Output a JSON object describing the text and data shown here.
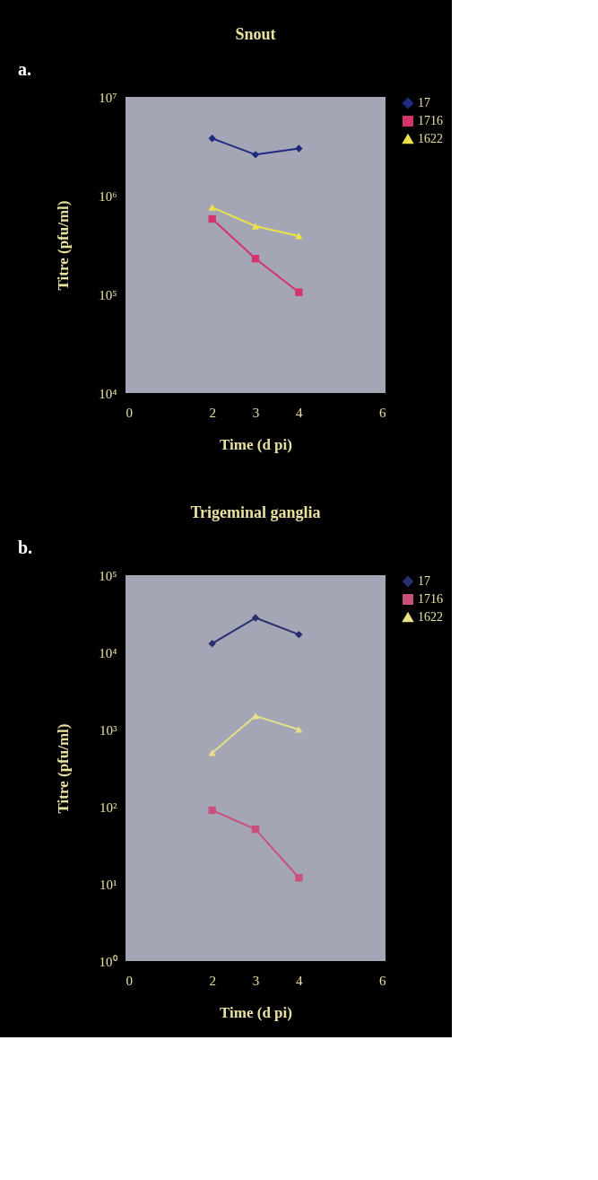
{
  "chart_data": [
    {
      "type": "line",
      "title": "Snout",
      "xlabel": "Time (d pi)",
      "ylabel": "Titre (pfu/ml)",
      "annotations": [
        "a."
      ],
      "log": "y",
      "legend": "right",
      "grid": false,
      "xlim": [
        0,
        6
      ],
      "xticks": [
        0,
        2,
        3,
        4,
        6
      ],
      "ylim": [
        10000,
        10000000
      ],
      "yticks": [
        {
          "value": 10000,
          "label": "10⁴"
        },
        {
          "value": 100000,
          "label": "10⁵"
        },
        {
          "value": 1000000,
          "label": "10⁶"
        },
        {
          "value": 10000000,
          "label": "10⁷"
        }
      ],
      "series": [
        {
          "name": "17",
          "color": "#1f2a80",
          "marker": "diamond",
          "x": [
            2,
            3,
            4
          ],
          "values": [
            3800000,
            2600000,
            3000000
          ]
        },
        {
          "name": "1716",
          "color": "#d6336c",
          "marker": "square",
          "x": [
            2,
            3,
            4
          ],
          "values": [
            580000,
            230000,
            105000
          ]
        },
        {
          "name": "1622",
          "color": "#ece24a",
          "marker": "triangle",
          "x": [
            2,
            3,
            4
          ],
          "values": [
            760000,
            490000,
            390000
          ]
        }
      ]
    },
    {
      "type": "line",
      "title": "Trigeminal ganglia",
      "xlabel": "Time (d pi)",
      "ylabel": "Titre (pfu/ml)",
      "annotations": [
        "b."
      ],
      "log": "y",
      "legend": "right",
      "grid": false,
      "xlim": [
        0,
        6
      ],
      "xticks": [
        0,
        2,
        3,
        4,
        6
      ],
      "ylim": [
        1,
        100000
      ],
      "yticks": [
        {
          "value": 1,
          "label": "10⁰"
        },
        {
          "value": 10,
          "label": "10¹"
        },
        {
          "value": 100,
          "label": "10²"
        },
        {
          "value": 1000,
          "label": "10³"
        },
        {
          "value": 10000,
          "label": "10⁴"
        },
        {
          "value": 100000,
          "label": "10⁵"
        }
      ],
      "series": [
        {
          "name": "17",
          "color": "#2a2f70",
          "marker": "diamond",
          "x": [
            2,
            3,
            4
          ],
          "values": [
            13000,
            28000,
            17000
          ]
        },
        {
          "name": "1716",
          "color": "#c8507a",
          "marker": "square",
          "x": [
            2,
            3,
            4
          ],
          "values": [
            90,
            51,
            12
          ]
        },
        {
          "name": "1622",
          "color": "#e6e08a",
          "marker": "triangle",
          "x": [
            2,
            3,
            4
          ],
          "values": [
            500,
            1500,
            1000
          ]
        }
      ]
    }
  ]
}
